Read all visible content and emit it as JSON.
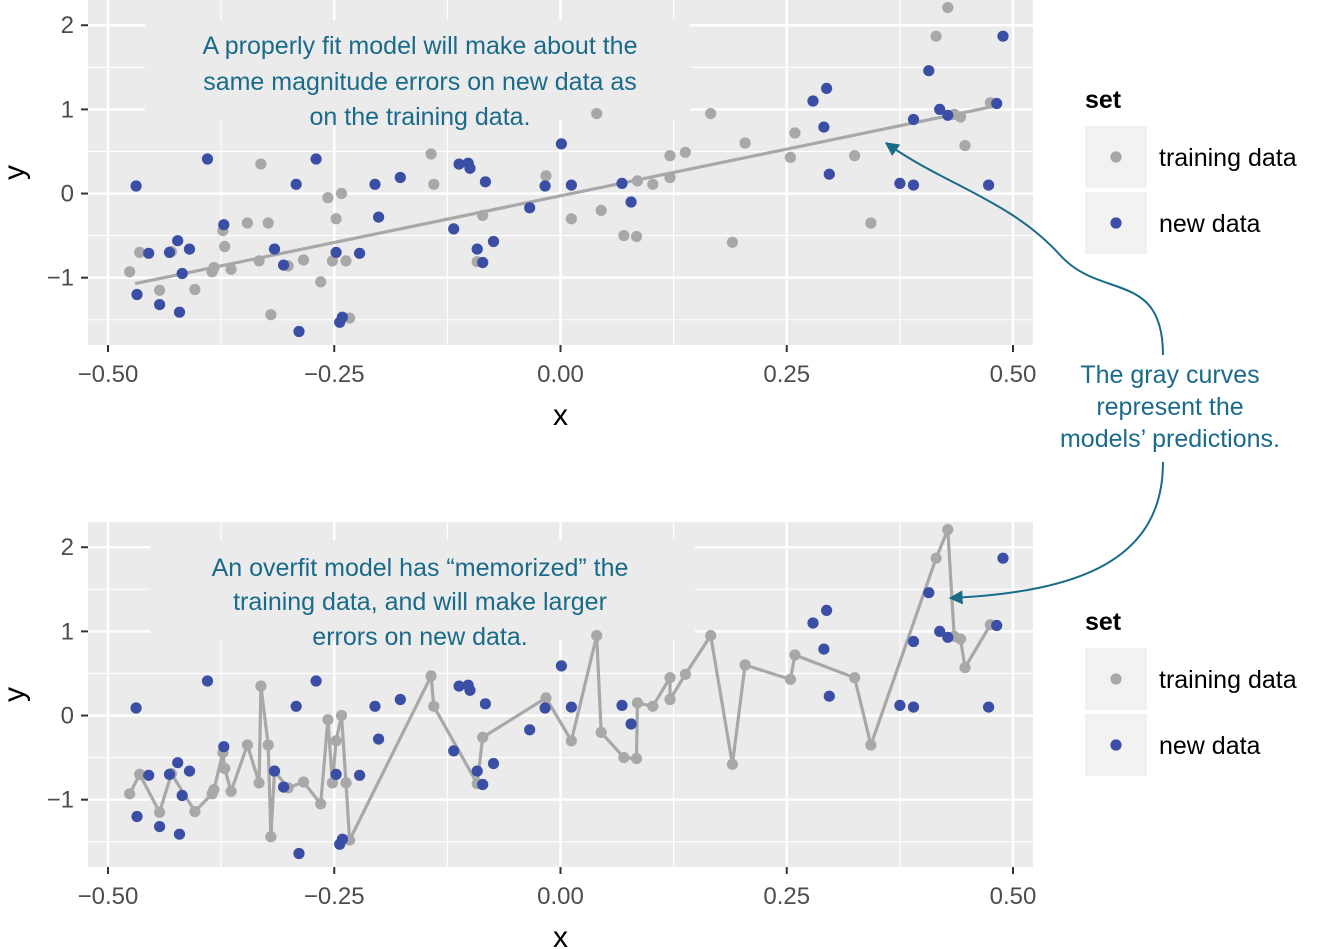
{
  "colors": {
    "panel_bg": "#ebebeb",
    "grid": "#ffffff",
    "training": "#a8a8a8",
    "new": "#3b4ea5",
    "fit_line": "#a8a8a8",
    "annotation": "#1a6a8a"
  },
  "chart_data": [
    {
      "type": "scatter",
      "xlabel": "x",
      "ylabel": "y",
      "xlim": [
        -0.5,
        0.5
      ],
      "ylim": [
        -1.8,
        2.3
      ],
      "x_ticks": [
        -0.5,
        -0.25,
        0,
        0.25,
        0.5
      ],
      "x_tick_labels": [
        "−0.50",
        "−0.25",
        "0.00",
        "0.25",
        "0.50"
      ],
      "y_ticks": [
        -1,
        0,
        1,
        2
      ],
      "y_tick_labels": [
        "−1",
        "0",
        "1",
        "2"
      ],
      "grid": true,
      "annotation_lines": [
        "A properly fit model will make about the",
        "same magnitude errors on new data as",
        "on the training data."
      ],
      "legend": {
        "title": "set",
        "position": "right",
        "entries": [
          "training data",
          "new data"
        ]
      },
      "fit": {
        "type": "linear",
        "points": [
          [
            -0.47,
            -1.07
          ],
          [
            0.485,
            1.05
          ]
        ]
      },
      "series": [
        {
          "name": "training data",
          "points": [
            [
              -0.476,
              -0.93
            ],
            [
              -0.465,
              -0.7
            ],
            [
              -0.443,
              -1.15
            ],
            [
              -0.43,
              -0.69
            ],
            [
              -0.404,
              -1.14
            ],
            [
              -0.385,
              -0.93
            ],
            [
              -0.383,
              -0.88
            ],
            [
              -0.373,
              -0.44
            ],
            [
              -0.371,
              -0.63
            ],
            [
              -0.364,
              -0.9
            ],
            [
              -0.346,
              -0.35
            ],
            [
              -0.333,
              -0.8
            ],
            [
              -0.331,
              0.35
            ],
            [
              -0.323,
              -0.35
            ],
            [
              -0.32,
              -1.44
            ],
            [
              -0.316,
              -0.66
            ],
            [
              -0.301,
              -0.86
            ],
            [
              -0.284,
              -0.79
            ],
            [
              -0.265,
              -1.05
            ],
            [
              -0.257,
              -0.05
            ],
            [
              -0.252,
              -0.8
            ],
            [
              -0.248,
              -0.3
            ],
            [
              -0.242,
              0.0
            ],
            [
              -0.237,
              -0.8
            ],
            [
              -0.233,
              -1.48
            ],
            [
              -0.143,
              0.47
            ],
            [
              -0.14,
              0.11
            ],
            [
              -0.092,
              -0.81
            ],
            [
              -0.086,
              -0.26
            ],
            [
              -0.016,
              0.21
            ],
            [
              0.012,
              -0.3
            ],
            [
              0.04,
              0.95
            ],
            [
              0.045,
              -0.2
            ],
            [
              0.07,
              -0.5
            ],
            [
              0.084,
              -0.51
            ],
            [
              0.085,
              0.15
            ],
            [
              0.102,
              0.11
            ],
            [
              0.121,
              0.45
            ],
            [
              0.121,
              0.19
            ],
            [
              0.138,
              0.49
            ],
            [
              0.166,
              0.95
            ],
            [
              0.19,
              -0.58
            ],
            [
              0.204,
              0.6
            ],
            [
              0.254,
              0.43
            ],
            [
              0.259,
              0.72
            ],
            [
              0.325,
              0.45
            ],
            [
              0.343,
              -0.35
            ],
            [
              0.415,
              1.87
            ],
            [
              0.428,
              2.21
            ],
            [
              0.435,
              0.94
            ],
            [
              0.442,
              0.91
            ],
            [
              0.447,
              0.57
            ],
            [
              0.475,
              1.08
            ]
          ]
        },
        {
          "name": "new data",
          "points": [
            [
              -0.469,
              0.09
            ],
            [
              -0.468,
              -1.2
            ],
            [
              -0.455,
              -0.71
            ],
            [
              -0.443,
              -1.32
            ],
            [
              -0.432,
              -0.7
            ],
            [
              -0.423,
              -0.56
            ],
            [
              -0.418,
              -0.95
            ],
            [
              -0.421,
              -1.41
            ],
            [
              -0.41,
              -0.66
            ],
            [
              -0.39,
              0.41
            ],
            [
              -0.372,
              -0.37
            ],
            [
              -0.316,
              -0.66
            ],
            [
              -0.306,
              -0.85
            ],
            [
              -0.292,
              0.11
            ],
            [
              -0.289,
              -1.64
            ],
            [
              -0.27,
              0.41
            ],
            [
              -0.248,
              -0.7
            ],
            [
              -0.244,
              -1.53
            ],
            [
              -0.241,
              -1.47
            ],
            [
              -0.222,
              -0.71
            ],
            [
              -0.205,
              0.11
            ],
            [
              -0.201,
              -0.28
            ],
            [
              -0.177,
              0.19
            ],
            [
              -0.118,
              -0.42
            ],
            [
              -0.112,
              0.35
            ],
            [
              -0.102,
              0.36
            ],
            [
              -0.1,
              0.3
            ],
            [
              -0.092,
              -0.66
            ],
            [
              -0.086,
              -0.82
            ],
            [
              -0.083,
              0.14
            ],
            [
              -0.074,
              -0.57
            ],
            [
              -0.034,
              -0.17
            ],
            [
              -0.017,
              0.09
            ],
            [
              0.001,
              0.59
            ],
            [
              0.012,
              0.1
            ],
            [
              0.068,
              0.12
            ],
            [
              0.078,
              -0.1
            ],
            [
              0.279,
              1.1
            ],
            [
              0.291,
              0.79
            ],
            [
              0.294,
              1.25
            ],
            [
              0.297,
              0.23
            ],
            [
              0.375,
              0.12
            ],
            [
              0.39,
              0.88
            ],
            [
              0.39,
              0.1
            ],
            [
              0.407,
              1.46
            ],
            [
              0.419,
              1.0
            ],
            [
              0.428,
              0.93
            ],
            [
              0.473,
              0.1
            ],
            [
              0.482,
              1.07
            ],
            [
              0.489,
              1.87
            ]
          ]
        }
      ]
    },
    {
      "type": "scatter",
      "xlabel": "x",
      "ylabel": "y",
      "xlim": [
        -0.5,
        0.5
      ],
      "ylim": [
        -1.8,
        2.3
      ],
      "x_ticks": [
        -0.5,
        -0.25,
        0,
        0.25,
        0.5
      ],
      "x_tick_labels": [
        "−0.50",
        "−0.25",
        "0.00",
        "0.25",
        "0.50"
      ],
      "y_ticks": [
        -1,
        0,
        1,
        2
      ],
      "y_tick_labels": [
        "−1",
        "0",
        "1",
        "2"
      ],
      "grid": true,
      "annotation_lines": [
        "An overfit model has “memorized” the",
        "training data, and will make larger",
        "errors on new data."
      ],
      "legend": {
        "title": "set",
        "position": "right",
        "entries": [
          "training data",
          "new data"
        ]
      },
      "fit": {
        "type": "interpolating"
      },
      "series": [
        {
          "name": "training data",
          "points": [
            [
              -0.476,
              -0.93
            ],
            [
              -0.465,
              -0.7
            ],
            [
              -0.443,
              -1.15
            ],
            [
              -0.43,
              -0.69
            ],
            [
              -0.404,
              -1.14
            ],
            [
              -0.385,
              -0.93
            ],
            [
              -0.383,
              -0.88
            ],
            [
              -0.373,
              -0.44
            ],
            [
              -0.371,
              -0.63
            ],
            [
              -0.364,
              -0.9
            ],
            [
              -0.346,
              -0.35
            ],
            [
              -0.333,
              -0.8
            ],
            [
              -0.331,
              0.35
            ],
            [
              -0.323,
              -0.35
            ],
            [
              -0.32,
              -1.44
            ],
            [
              -0.316,
              -0.66
            ],
            [
              -0.301,
              -0.86
            ],
            [
              -0.284,
              -0.79
            ],
            [
              -0.265,
              -1.05
            ],
            [
              -0.257,
              -0.05
            ],
            [
              -0.252,
              -0.8
            ],
            [
              -0.248,
              -0.3
            ],
            [
              -0.242,
              0.0
            ],
            [
              -0.237,
              -0.8
            ],
            [
              -0.233,
              -1.48
            ],
            [
              -0.143,
              0.47
            ],
            [
              -0.14,
              0.11
            ],
            [
              -0.092,
              -0.81
            ],
            [
              -0.086,
              -0.26
            ],
            [
              -0.016,
              0.21
            ],
            [
              0.012,
              -0.3
            ],
            [
              0.04,
              0.95
            ],
            [
              0.045,
              -0.2
            ],
            [
              0.07,
              -0.5
            ],
            [
              0.084,
              -0.51
            ],
            [
              0.085,
              0.15
            ],
            [
              0.102,
              0.11
            ],
            [
              0.121,
              0.45
            ],
            [
              0.121,
              0.19
            ],
            [
              0.138,
              0.49
            ],
            [
              0.166,
              0.95
            ],
            [
              0.19,
              -0.58
            ],
            [
              0.204,
              0.6
            ],
            [
              0.254,
              0.43
            ],
            [
              0.259,
              0.72
            ],
            [
              0.325,
              0.45
            ],
            [
              0.343,
              -0.35
            ],
            [
              0.415,
              1.87
            ],
            [
              0.428,
              2.21
            ],
            [
              0.435,
              0.94
            ],
            [
              0.442,
              0.91
            ],
            [
              0.447,
              0.57
            ],
            [
              0.475,
              1.08
            ]
          ]
        },
        {
          "name": "new data",
          "points": [
            [
              -0.469,
              0.09
            ],
            [
              -0.468,
              -1.2
            ],
            [
              -0.455,
              -0.71
            ],
            [
              -0.443,
              -1.32
            ],
            [
              -0.432,
              -0.7
            ],
            [
              -0.423,
              -0.56
            ],
            [
              -0.418,
              -0.95
            ],
            [
              -0.421,
              -1.41
            ],
            [
              -0.41,
              -0.66
            ],
            [
              -0.39,
              0.41
            ],
            [
              -0.372,
              -0.37
            ],
            [
              -0.316,
              -0.66
            ],
            [
              -0.306,
              -0.85
            ],
            [
              -0.292,
              0.11
            ],
            [
              -0.289,
              -1.64
            ],
            [
              -0.27,
              0.41
            ],
            [
              -0.248,
              -0.7
            ],
            [
              -0.244,
              -1.53
            ],
            [
              -0.241,
              -1.47
            ],
            [
              -0.222,
              -0.71
            ],
            [
              -0.205,
              0.11
            ],
            [
              -0.201,
              -0.28
            ],
            [
              -0.177,
              0.19
            ],
            [
              -0.118,
              -0.42
            ],
            [
              -0.112,
              0.35
            ],
            [
              -0.102,
              0.36
            ],
            [
              -0.1,
              0.3
            ],
            [
              -0.092,
              -0.66
            ],
            [
              -0.086,
              -0.82
            ],
            [
              -0.083,
              0.14
            ],
            [
              -0.074,
              -0.57
            ],
            [
              -0.034,
              -0.17
            ],
            [
              -0.017,
              0.09
            ],
            [
              0.001,
              0.59
            ],
            [
              0.012,
              0.1
            ],
            [
              0.068,
              0.12
            ],
            [
              0.078,
              -0.1
            ],
            [
              0.279,
              1.1
            ],
            [
              0.291,
              0.79
            ],
            [
              0.294,
              1.25
            ],
            [
              0.297,
              0.23
            ],
            [
              0.375,
              0.12
            ],
            [
              0.39,
              0.88
            ],
            [
              0.39,
              0.1
            ],
            [
              0.407,
              1.46
            ],
            [
              0.419,
              1.0
            ],
            [
              0.428,
              0.93
            ],
            [
              0.473,
              0.1
            ],
            [
              0.482,
              1.07
            ],
            [
              0.489,
              1.87
            ]
          ]
        }
      ]
    }
  ],
  "side_annotation_lines": [
    "The gray curves",
    "represent the",
    "models’ predictions."
  ]
}
